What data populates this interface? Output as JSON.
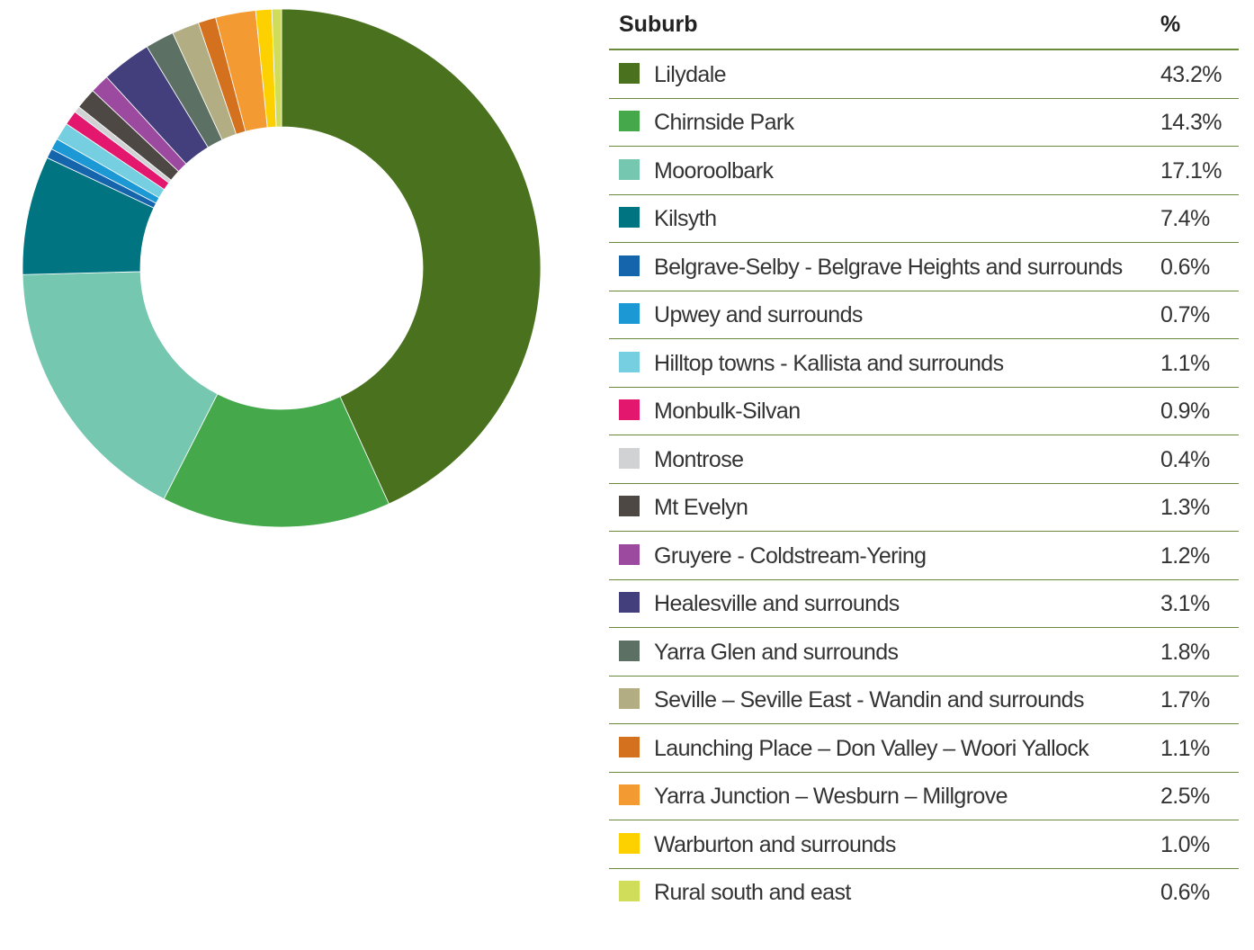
{
  "chart_data": {
    "type": "pie",
    "donut": true,
    "headers": {
      "category": "Suburb",
      "value": "%"
    },
    "categories": [
      "Lilydale",
      "Chirnside Park",
      "Mooroolbark",
      "Kilsyth",
      "Belgrave-Selby - Belgrave Heights and surrounds",
      "Upwey and surrounds",
      "Hilltop towns - Kallista and surrounds",
      "Monbulk-Silvan",
      "Montrose",
      "Mt Evelyn",
      "Gruyere - Coldstream-Yering",
      "Healesville and surrounds",
      "Yarra Glen and surrounds",
      "Seville – Seville East - Wandin and surrounds",
      "Launching Place – Don Valley – Woori Yallock",
      "Yarra Junction – Wesburn – Millgrove",
      "Warburton and surrounds",
      "Rural south and east"
    ],
    "values": [
      43.2,
      14.3,
      17.1,
      7.4,
      0.6,
      0.7,
      1.1,
      0.9,
      0.4,
      1.3,
      1.2,
      3.1,
      1.8,
      1.7,
      1.1,
      2.5,
      1.0,
      0.6
    ],
    "value_labels": [
      "43.2%",
      "14.3%",
      "17.1%",
      "7.4%",
      "0.6%",
      "0.7%",
      "1.1%",
      "0.9%",
      "0.4%",
      "1.3%",
      "1.2%",
      "3.1%",
      "1.8%",
      "1.7%",
      "1.1%",
      "2.5%",
      "1.0%",
      "0.6%"
    ],
    "colors": [
      "#4a721e",
      "#45a94b",
      "#76c7b0",
      "#007481",
      "#1565ad",
      "#1c98d5",
      "#75cfe0",
      "#e4176e",
      "#d1d2d4",
      "#4d4843",
      "#9b4a9f",
      "#433f7c",
      "#5c7064",
      "#b2ad82",
      "#d4711e",
      "#f49a32",
      "#fdd000",
      "#cfdd5a"
    ]
  }
}
